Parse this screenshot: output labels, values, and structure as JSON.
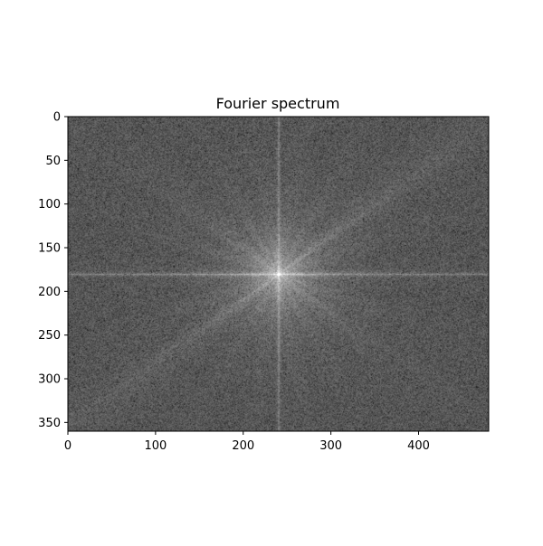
{
  "chart_data": {
    "type": "heatmap",
    "title": "Fourier spectrum",
    "xlabel": "",
    "ylabel": "",
    "image_width": 480,
    "image_height": 360,
    "xlim": [
      0,
      480
    ],
    "ylim": [
      360,
      0
    ],
    "x_ticks": [
      0,
      100,
      200,
      300,
      400
    ],
    "y_ticks": [
      0,
      50,
      100,
      150,
      200,
      250,
      300,
      350
    ],
    "colormap": "gray",
    "peak_location": [
      240,
      180
    ],
    "grid": false,
    "legend": "none"
  }
}
